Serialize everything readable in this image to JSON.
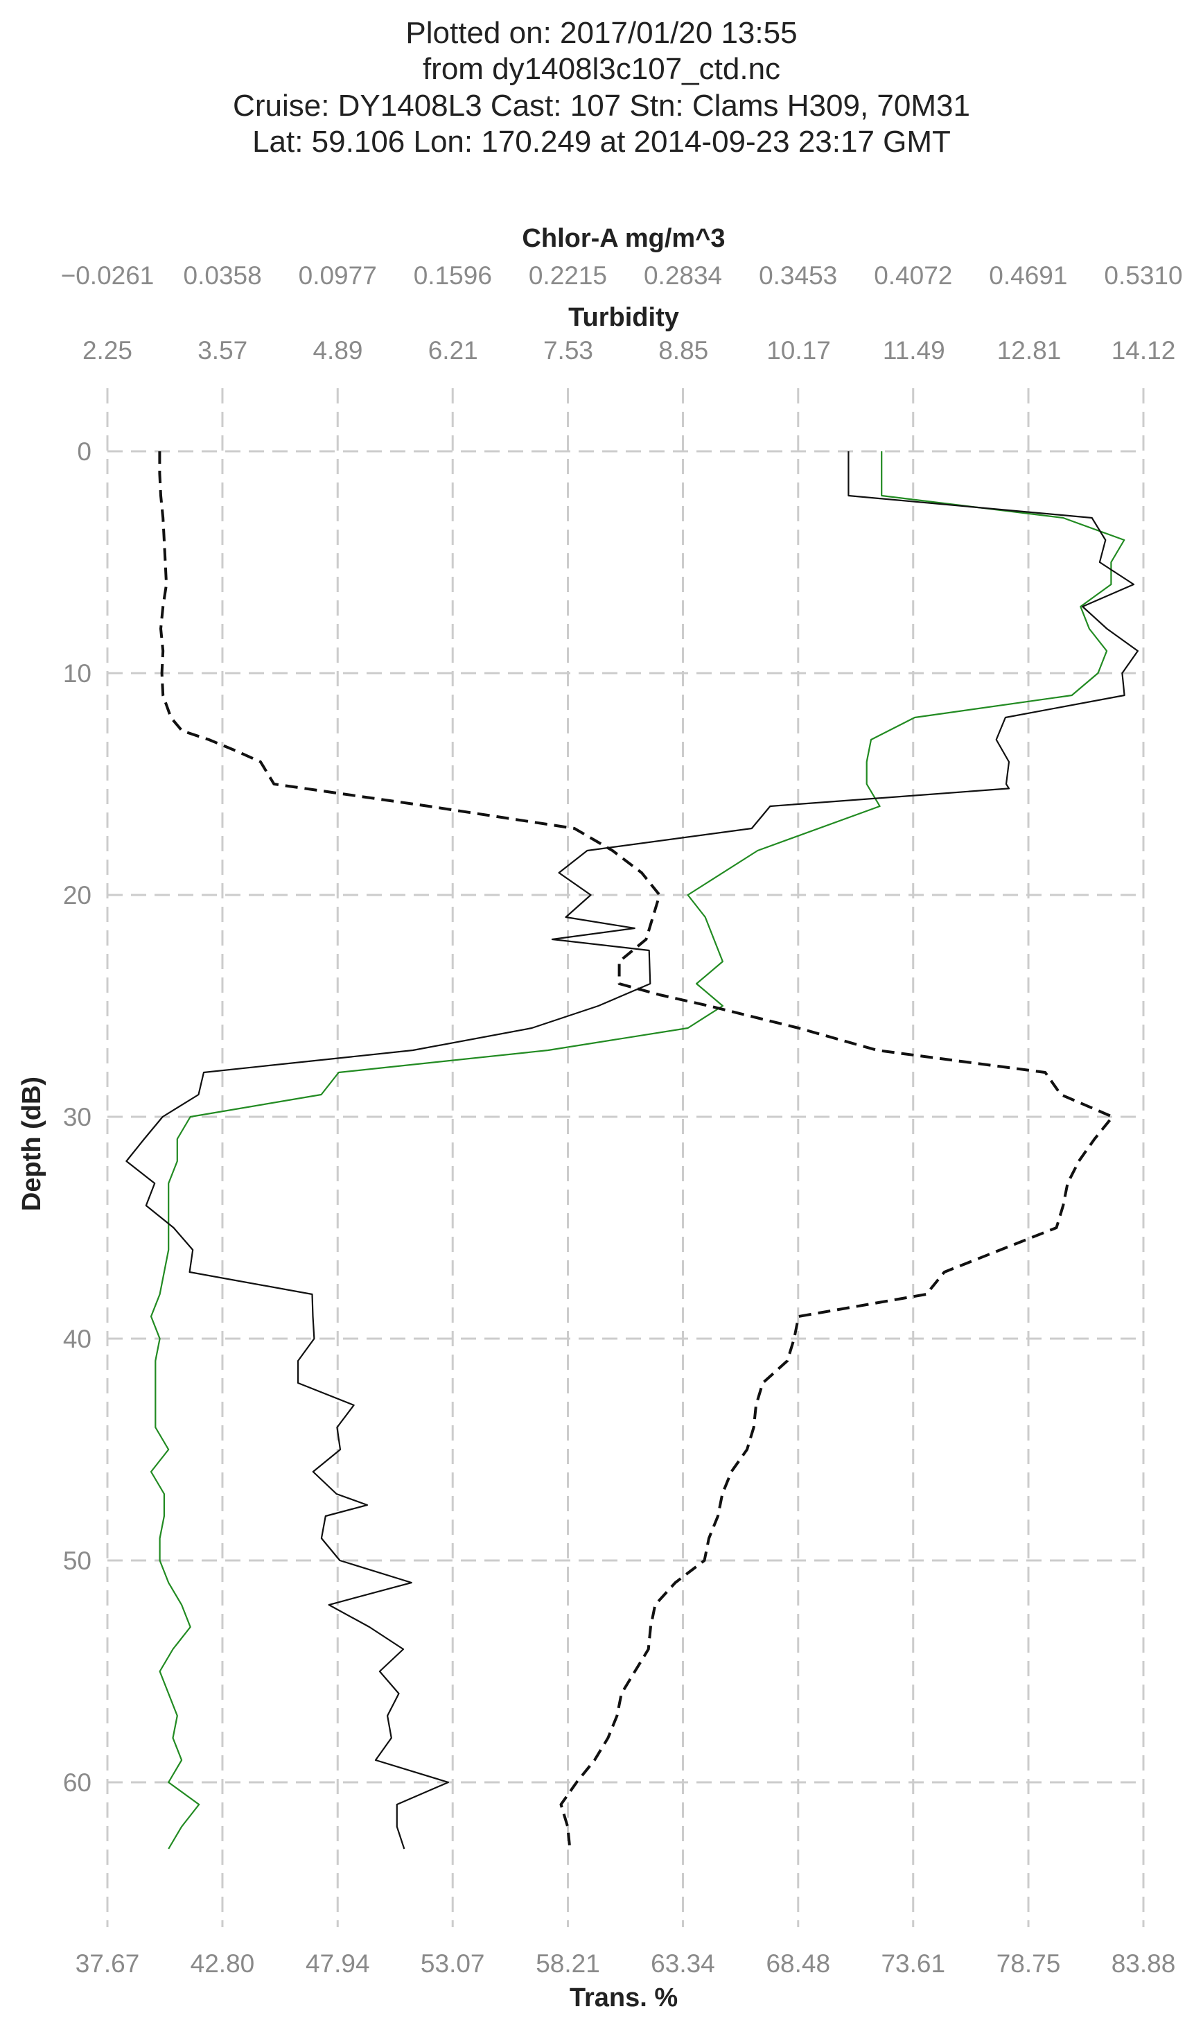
{
  "title_lines": [
    "Plotted on: 2017/01/20 13:55",
    "from dy1408l3c107_ctd.nc",
    "Cruise: DY1408L3  Cast: 107  Stn: Clams H309, 70M31",
    "Lat: 59.106  Lon: 170.249 at 2014-09-23 23:17 GMT"
  ],
  "chart_data": {
    "type": "line",
    "y_axis": {
      "label": "Depth (dB)",
      "range": [
        66,
        -4
      ],
      "inverted": true,
      "ticks": [
        0,
        10,
        20,
        30,
        40,
        50,
        60
      ],
      "tick_labels": [
        "0",
        "10",
        "20",
        "30",
        "40",
        "50",
        "60"
      ]
    },
    "x_axes": [
      {
        "id": "chlor",
        "label": "Chlor-A mg/m^3",
        "position": "top-outer",
        "range": [
          -0.0261,
          0.531
        ],
        "ticks": [
          -0.0261,
          0.0358,
          0.0977,
          0.1596,
          0.2215,
          0.2834,
          0.3453,
          0.4072,
          0.4691,
          0.531
        ],
        "tick_labels": [
          "−0.0261",
          "0.0358",
          "0.0977",
          "0.1596",
          "0.2215",
          "0.2834",
          "0.3453",
          "0.4072",
          "0.4691",
          "0.5310"
        ]
      },
      {
        "id": "turb",
        "label": "Turbidity",
        "position": "top-inner",
        "range": [
          2.25,
          14.12
        ],
        "ticks": [
          2.25,
          3.57,
          4.89,
          6.21,
          7.53,
          8.85,
          10.17,
          11.49,
          12.81,
          14.12
        ],
        "tick_labels": [
          "2.25",
          "3.57",
          "4.89",
          "6.21",
          "7.53",
          "8.85",
          "10.17",
          "11.49",
          "12.81",
          "14.12"
        ]
      },
      {
        "id": "trans",
        "label": "Trans. %",
        "position": "bottom",
        "range": [
          37.67,
          83.88
        ],
        "ticks": [
          37.67,
          42.8,
          47.94,
          53.07,
          58.21,
          63.34,
          68.48,
          73.61,
          78.75,
          83.88
        ],
        "tick_labels": [
          "37.67",
          "42.80",
          "47.94",
          "53.07",
          "58.21",
          "63.34",
          "68.48",
          "73.61",
          "78.75",
          "83.88"
        ]
      }
    ],
    "grid": true,
    "series": [
      {
        "axis": "turb",
        "color": "#228B22",
        "style": "solid",
        "points": [
          [
            11.12,
            0
          ],
          [
            11.12,
            1
          ],
          [
            11.12,
            2
          ],
          [
            13.2,
            3
          ],
          [
            13.9,
            4
          ],
          [
            13.75,
            5
          ],
          [
            13.75,
            6
          ],
          [
            13.4,
            7
          ],
          [
            13.5,
            8
          ],
          [
            13.7,
            9
          ],
          [
            13.6,
            10
          ],
          [
            13.3,
            11
          ],
          [
            11.5,
            12
          ],
          [
            11.0,
            13
          ],
          [
            10.95,
            14
          ],
          [
            10.95,
            15
          ],
          [
            11.1,
            16
          ],
          [
            9.7,
            18
          ],
          [
            8.9,
            20
          ],
          [
            9.1,
            21
          ],
          [
            9.3,
            23
          ],
          [
            9.0,
            24
          ],
          [
            9.3,
            25
          ],
          [
            8.9,
            26
          ],
          [
            7.3,
            27
          ],
          [
            4.9,
            28
          ],
          [
            4.7,
            29
          ],
          [
            3.2,
            30
          ],
          [
            3.05,
            31
          ],
          [
            3.05,
            32
          ],
          [
            2.95,
            33
          ],
          [
            2.95,
            35
          ],
          [
            2.95,
            36
          ],
          [
            2.9,
            37
          ],
          [
            2.85,
            38
          ],
          [
            2.75,
            39
          ],
          [
            2.85,
            40
          ],
          [
            2.8,
            41
          ],
          [
            2.8,
            43
          ],
          [
            2.8,
            44
          ],
          [
            2.95,
            45
          ],
          [
            2.75,
            46
          ],
          [
            2.9,
            47
          ],
          [
            2.9,
            48
          ],
          [
            2.85,
            49
          ],
          [
            2.85,
            50
          ],
          [
            2.95,
            51
          ],
          [
            3.1,
            52
          ],
          [
            3.2,
            53
          ],
          [
            3.0,
            54
          ],
          [
            2.85,
            55
          ],
          [
            2.95,
            56
          ],
          [
            3.05,
            57
          ],
          [
            3.0,
            58
          ],
          [
            3.1,
            59
          ],
          [
            2.95,
            60
          ],
          [
            3.3,
            61
          ],
          [
            3.1,
            62
          ],
          [
            2.95,
            63
          ]
        ]
      },
      {
        "axis": "chlor",
        "color": "#111111",
        "style": "solid",
        "points": [
          [
            0.3724,
            0
          ],
          [
            0.3724,
            1
          ],
          [
            0.3724,
            2
          ],
          [
            0.5033,
            3
          ],
          [
            0.5106,
            4
          ],
          [
            0.5075,
            5
          ],
          [
            0.5258,
            6
          ],
          [
            0.4983,
            7
          ],
          [
            0.5114,
            8
          ],
          [
            0.528,
            9
          ],
          [
            0.5196,
            10
          ],
          [
            0.5208,
            11
          ],
          [
            0.4568,
            12
          ],
          [
            0.4519,
            13
          ],
          [
            0.4587,
            14
          ],
          [
            0.4572,
            15
          ],
          [
            0.4587,
            15.2
          ],
          [
            0.3303,
            16
          ],
          [
            0.3204,
            17
          ],
          [
            0.2319,
            18
          ],
          [
            0.2167,
            19
          ],
          [
            0.2338,
            20
          ],
          [
            0.2204,
            21
          ],
          [
            0.2574,
            21.5
          ],
          [
            0.2131,
            22
          ],
          [
            0.2652,
            22.5
          ],
          [
            0.2658,
            24
          ],
          [
            0.2379,
            25
          ],
          [
            0.2021,
            26
          ],
          [
            0.1382,
            27
          ],
          [
            0.0257,
            28
          ],
          [
            0.0229,
            29
          ],
          [
            0.0036,
            30
          ],
          [
            -0.0063,
            31
          ],
          [
            -0.0159,
            32
          ],
          [
            -0.0007,
            33
          ],
          [
            -0.0053,
            34
          ],
          [
            0.0095,
            35
          ],
          [
            0.0198,
            36
          ],
          [
            0.0181,
            37
          ],
          [
            0.084,
            38
          ],
          [
            0.0844,
            39
          ],
          [
            0.0851,
            40
          ],
          [
            0.0764,
            41
          ],
          [
            0.0764,
            42
          ],
          [
            0.1064,
            43
          ],
          [
            0.0974,
            44
          ],
          [
            0.0991,
            45
          ],
          [
            0.0845,
            46
          ],
          [
            0.0971,
            47
          ],
          [
            0.1136,
            47.5
          ],
          [
            0.0912,
            48
          ],
          [
            0.089,
            49
          ],
          [
            0.0989,
            50
          ],
          [
            0.1374,
            51
          ],
          [
            0.093,
            52
          ],
          [
            0.1148,
            53
          ],
          [
            0.133,
            54
          ],
          [
            0.1203,
            55
          ],
          [
            0.1306,
            56
          ],
          [
            0.1245,
            57
          ],
          [
            0.1266,
            58
          ],
          [
            0.1181,
            59
          ],
          [
            0.1572,
            60
          ],
          [
            0.1296,
            61
          ],
          [
            0.1296,
            62
          ],
          [
            0.1335,
            63
          ]
        ]
      },
      {
        "axis": "trans",
        "color": "#111111",
        "style": "dashed",
        "points": [
          [
            40.0,
            0
          ],
          [
            40.0,
            1
          ],
          [
            40.05,
            2
          ],
          [
            40.15,
            3
          ],
          [
            40.2,
            4
          ],
          [
            40.25,
            5
          ],
          [
            40.3,
            6
          ],
          [
            40.15,
            7
          ],
          [
            40.05,
            8
          ],
          [
            40.15,
            9
          ],
          [
            40.1,
            10
          ],
          [
            40.15,
            11
          ],
          [
            40.5,
            12
          ],
          [
            41.0,
            12.6
          ],
          [
            42.2,
            13
          ],
          [
            43.4,
            13.5
          ],
          [
            44.5,
            14
          ],
          [
            45.1,
            15
          ],
          [
            52.0,
            16
          ],
          [
            58.5,
            17
          ],
          [
            60.2,
            18
          ],
          [
            61.5,
            19
          ],
          [
            62.3,
            20
          ],
          [
            62.0,
            21
          ],
          [
            61.7,
            22
          ],
          [
            60.5,
            23
          ],
          [
            60.5,
            24
          ],
          [
            62.3,
            24.5
          ],
          [
            64.5,
            25
          ],
          [
            68.5,
            26
          ],
          [
            72.0,
            27
          ],
          [
            79.5,
            28
          ],
          [
            80.2,
            29
          ],
          [
            82.5,
            30
          ],
          [
            81.7,
            31
          ],
          [
            81.0,
            32
          ],
          [
            80.5,
            33
          ],
          [
            80.3,
            34
          ],
          [
            80.0,
            35
          ],
          [
            77.5,
            36
          ],
          [
            75.0,
            37
          ],
          [
            74.2,
            38
          ],
          [
            68.5,
            39
          ],
          [
            68.3,
            40
          ],
          [
            68.0,
            41
          ],
          [
            66.9,
            42
          ],
          [
            66.6,
            43
          ],
          [
            66.5,
            44
          ],
          [
            66.2,
            45
          ],
          [
            65.5,
            46
          ],
          [
            65.1,
            47
          ],
          [
            64.9,
            48
          ],
          [
            64.5,
            49
          ],
          [
            64.3,
            50
          ],
          [
            63.0,
            51
          ],
          [
            62.1,
            52
          ],
          [
            61.9,
            53
          ],
          [
            61.8,
            54
          ],
          [
            61.2,
            55
          ],
          [
            60.6,
            56
          ],
          [
            60.4,
            57
          ],
          [
            60.0,
            58
          ],
          [
            59.4,
            59
          ],
          [
            58.6,
            60
          ],
          [
            57.9,
            61
          ],
          [
            58.2,
            62
          ],
          [
            58.3,
            63
          ]
        ]
      }
    ]
  }
}
